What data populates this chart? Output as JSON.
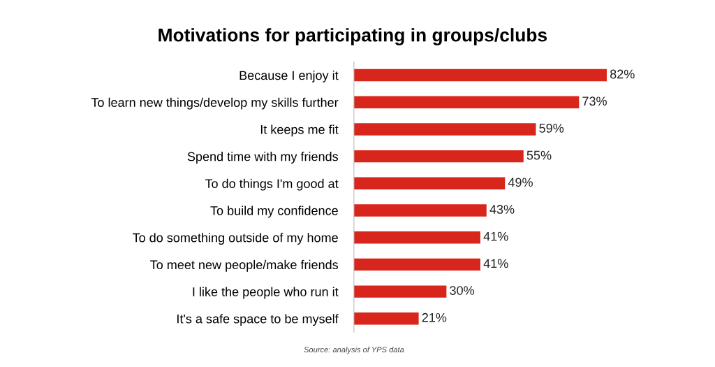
{
  "chart_data": {
    "type": "bar",
    "orientation": "horizontal",
    "title": "Motivations for participating in groups/clubs",
    "categories": [
      "Because I enjoy it",
      "To learn new things/develop my skills further",
      "It keeps me fit",
      "Spend time with my friends",
      "To do things I'm good at",
      "To build my confidence",
      "To do something outside of my home",
      "To meet new people/make friends",
      "I like the people who run it",
      "It's a safe space to be myself"
    ],
    "values": [
      82,
      73,
      59,
      55,
      49,
      43,
      41,
      41,
      30,
      21
    ],
    "value_labels": [
      "82%",
      "73%",
      "59%",
      "55%",
      "49%",
      "43%",
      "41%",
      "41%",
      "30%",
      "21%"
    ],
    "color": "#d9261c",
    "annotations": [
      "Source: analysis of YPS data"
    ]
  }
}
